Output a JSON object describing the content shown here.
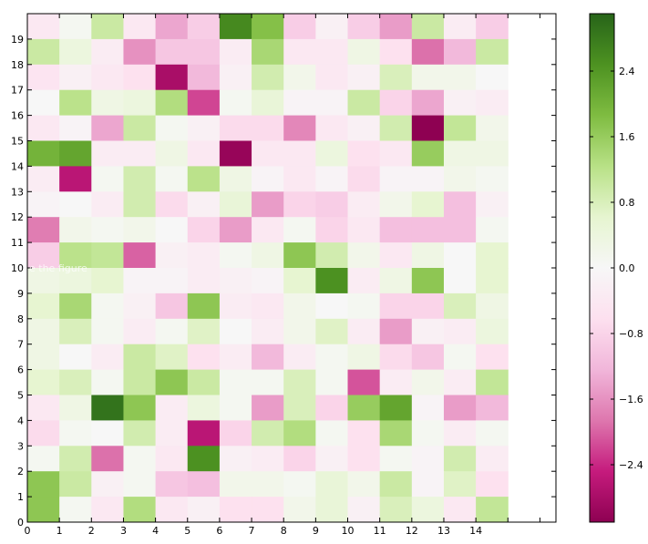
{
  "chart_data": {
    "type": "heatmap",
    "title": "",
    "xlabel": "",
    "ylabel": "",
    "colormap": "PiYG",
    "x_tick_labels": [
      "0",
      "1",
      "2",
      "3",
      "4",
      "5",
      "6",
      "7",
      "8",
      "9",
      "10",
      "11",
      "12",
      "13",
      "14"
    ],
    "y_tick_labels": [
      "0",
      "1",
      "2",
      "3",
      "4",
      "5",
      "6",
      "7",
      "8",
      "9",
      "10",
      "11",
      "12",
      "13",
      "14",
      "15",
      "16",
      "17",
      "18",
      "19"
    ],
    "xlim": [
      0,
      16.5
    ],
    "ylim": [
      0,
      20
    ],
    "colorbar": {
      "range": [
        -3.1,
        3.1
      ],
      "ticks": [
        "2.4",
        "1.6",
        "0.8",
        "0.0",
        "−0.8",
        "−1.6",
        "−2.4"
      ],
      "tick_values": [
        2.4,
        1.6,
        0.8,
        0.0,
        -0.8,
        -1.6,
        -2.4
      ]
    },
    "annotation": "e the figure",
    "annotation_row": 10,
    "rows_top_to_bottom": [
      [
        -0.4,
        0.1,
        1.0,
        -0.4,
        -1.4,
        -0.9,
        2.6,
        1.8,
        -0.9,
        -0.2,
        -0.9,
        -1.5,
        1.0,
        -0.3,
        -0.9,
        null
      ],
      [
        1.0,
        0.4,
        -0.3,
        -1.6,
        -1.0,
        -1.0,
        -0.3,
        1.4,
        -0.4,
        -0.4,
        0.3,
        -0.6,
        -1.9,
        -1.2,
        1.0,
        null
      ],
      [
        -0.5,
        -0.2,
        -0.4,
        -0.6,
        -2.8,
        -1.2,
        -0.2,
        0.9,
        0.2,
        -0.4,
        -0.2,
        0.8,
        0.2,
        0.2,
        0.0,
        null
      ],
      [
        0.0,
        1.2,
        0.3,
        0.4,
        1.3,
        -2.2,
        0.1,
        0.5,
        -0.1,
        -0.1,
        1.0,
        -0.8,
        -1.4,
        -0.2,
        -0.3,
        null
      ],
      [
        -0.4,
        -0.1,
        -1.4,
        1.0,
        0.1,
        -0.2,
        -0.7,
        -0.7,
        -1.7,
        -0.4,
        -0.2,
        0.9,
        -3.1,
        1.1,
        0.2,
        null
      ],
      [
        2.0,
        2.2,
        -0.3,
        -0.3,
        0.3,
        -0.4,
        -3.0,
        -0.4,
        -0.4,
        0.4,
        -0.6,
        -0.4,
        1.6,
        0.3,
        0.3,
        null
      ],
      [
        -0.3,
        -2.6,
        0.1,
        0.9,
        0.1,
        1.2,
        0.3,
        -0.1,
        -0.4,
        -0.1,
        -0.7,
        -0.1,
        -0.1,
        0.2,
        0.1,
        null
      ],
      [
        -0.1,
        0.0,
        -0.3,
        0.9,
        -0.7,
        -0.2,
        0.5,
        -1.5,
        -0.8,
        -0.9,
        -0.3,
        0.2,
        0.6,
        -1.1,
        -0.2,
        null
      ],
      [
        -1.8,
        0.2,
        0.1,
        0.2,
        0.0,
        -0.8,
        -1.5,
        -0.4,
        0.1,
        -0.8,
        -0.4,
        -1.1,
        -1.1,
        -1.1,
        0.1,
        null
      ],
      [
        -0.9,
        1.2,
        1.1,
        -2.0,
        -0.2,
        -0.3,
        0.1,
        0.3,
        1.7,
        0.9,
        0.2,
        -0.4,
        0.3,
        0.0,
        0.6,
        null
      ],
      [
        0.3,
        0.4,
        0.6,
        -0.1,
        -0.1,
        -0.3,
        -0.2,
        -0.1,
        0.6,
        2.5,
        -0.3,
        0.3,
        1.7,
        0.0,
        0.6,
        null
      ],
      [
        0.6,
        1.4,
        0.1,
        -0.2,
        -1.0,
        1.7,
        -0.3,
        -0.4,
        0.2,
        0.0,
        0.1,
        -0.8,
        -0.8,
        0.8,
        0.3,
        null
      ],
      [
        0.3,
        0.8,
        0.1,
        -0.3,
        0.1,
        0.7,
        0.0,
        -0.3,
        0.2,
        0.7,
        -0.3,
        -1.5,
        -0.2,
        -0.3,
        0.4,
        null
      ],
      [
        0.3,
        0.0,
        -0.3,
        1.0,
        0.7,
        -0.6,
        -0.3,
        -1.2,
        -0.3,
        0.1,
        0.3,
        -0.7,
        -1.0,
        0.1,
        -0.6,
        null
      ],
      [
        0.6,
        0.8,
        0.1,
        1.0,
        1.7,
        1.0,
        0.1,
        0.1,
        0.8,
        0.1,
        -2.1,
        -0.3,
        0.2,
        -0.3,
        1.1,
        null
      ],
      [
        -0.4,
        0.3,
        2.9,
        1.7,
        -0.3,
        0.4,
        0.1,
        -1.5,
        0.8,
        -0.8,
        1.6,
        2.2,
        -0.1,
        -1.5,
        -1.2,
        null
      ],
      [
        -0.7,
        0.1,
        0.0,
        0.9,
        -0.3,
        -2.6,
        -0.8,
        0.9,
        1.3,
        0.1,
        -0.6,
        1.4,
        0.1,
        -0.3,
        0.1,
        null
      ],
      [
        0.1,
        0.9,
        -1.9,
        0.1,
        -0.4,
        2.5,
        -0.2,
        -0.3,
        -0.8,
        -0.2,
        -0.6,
        0.1,
        -0.1,
        0.9,
        -0.3,
        null
      ],
      [
        1.7,
        1.0,
        -0.2,
        0.1,
        -1.0,
        -1.1,
        0.2,
        0.2,
        0.1,
        0.5,
        0.2,
        1.0,
        -0.1,
        0.7,
        -0.6,
        null
      ],
      [
        1.7,
        0.1,
        -0.4,
        1.3,
        -0.4,
        -0.2,
        -0.6,
        -0.6,
        0.2,
        0.5,
        -0.2,
        0.8,
        0.4,
        -0.4,
        1.1,
        null
      ]
    ]
  }
}
